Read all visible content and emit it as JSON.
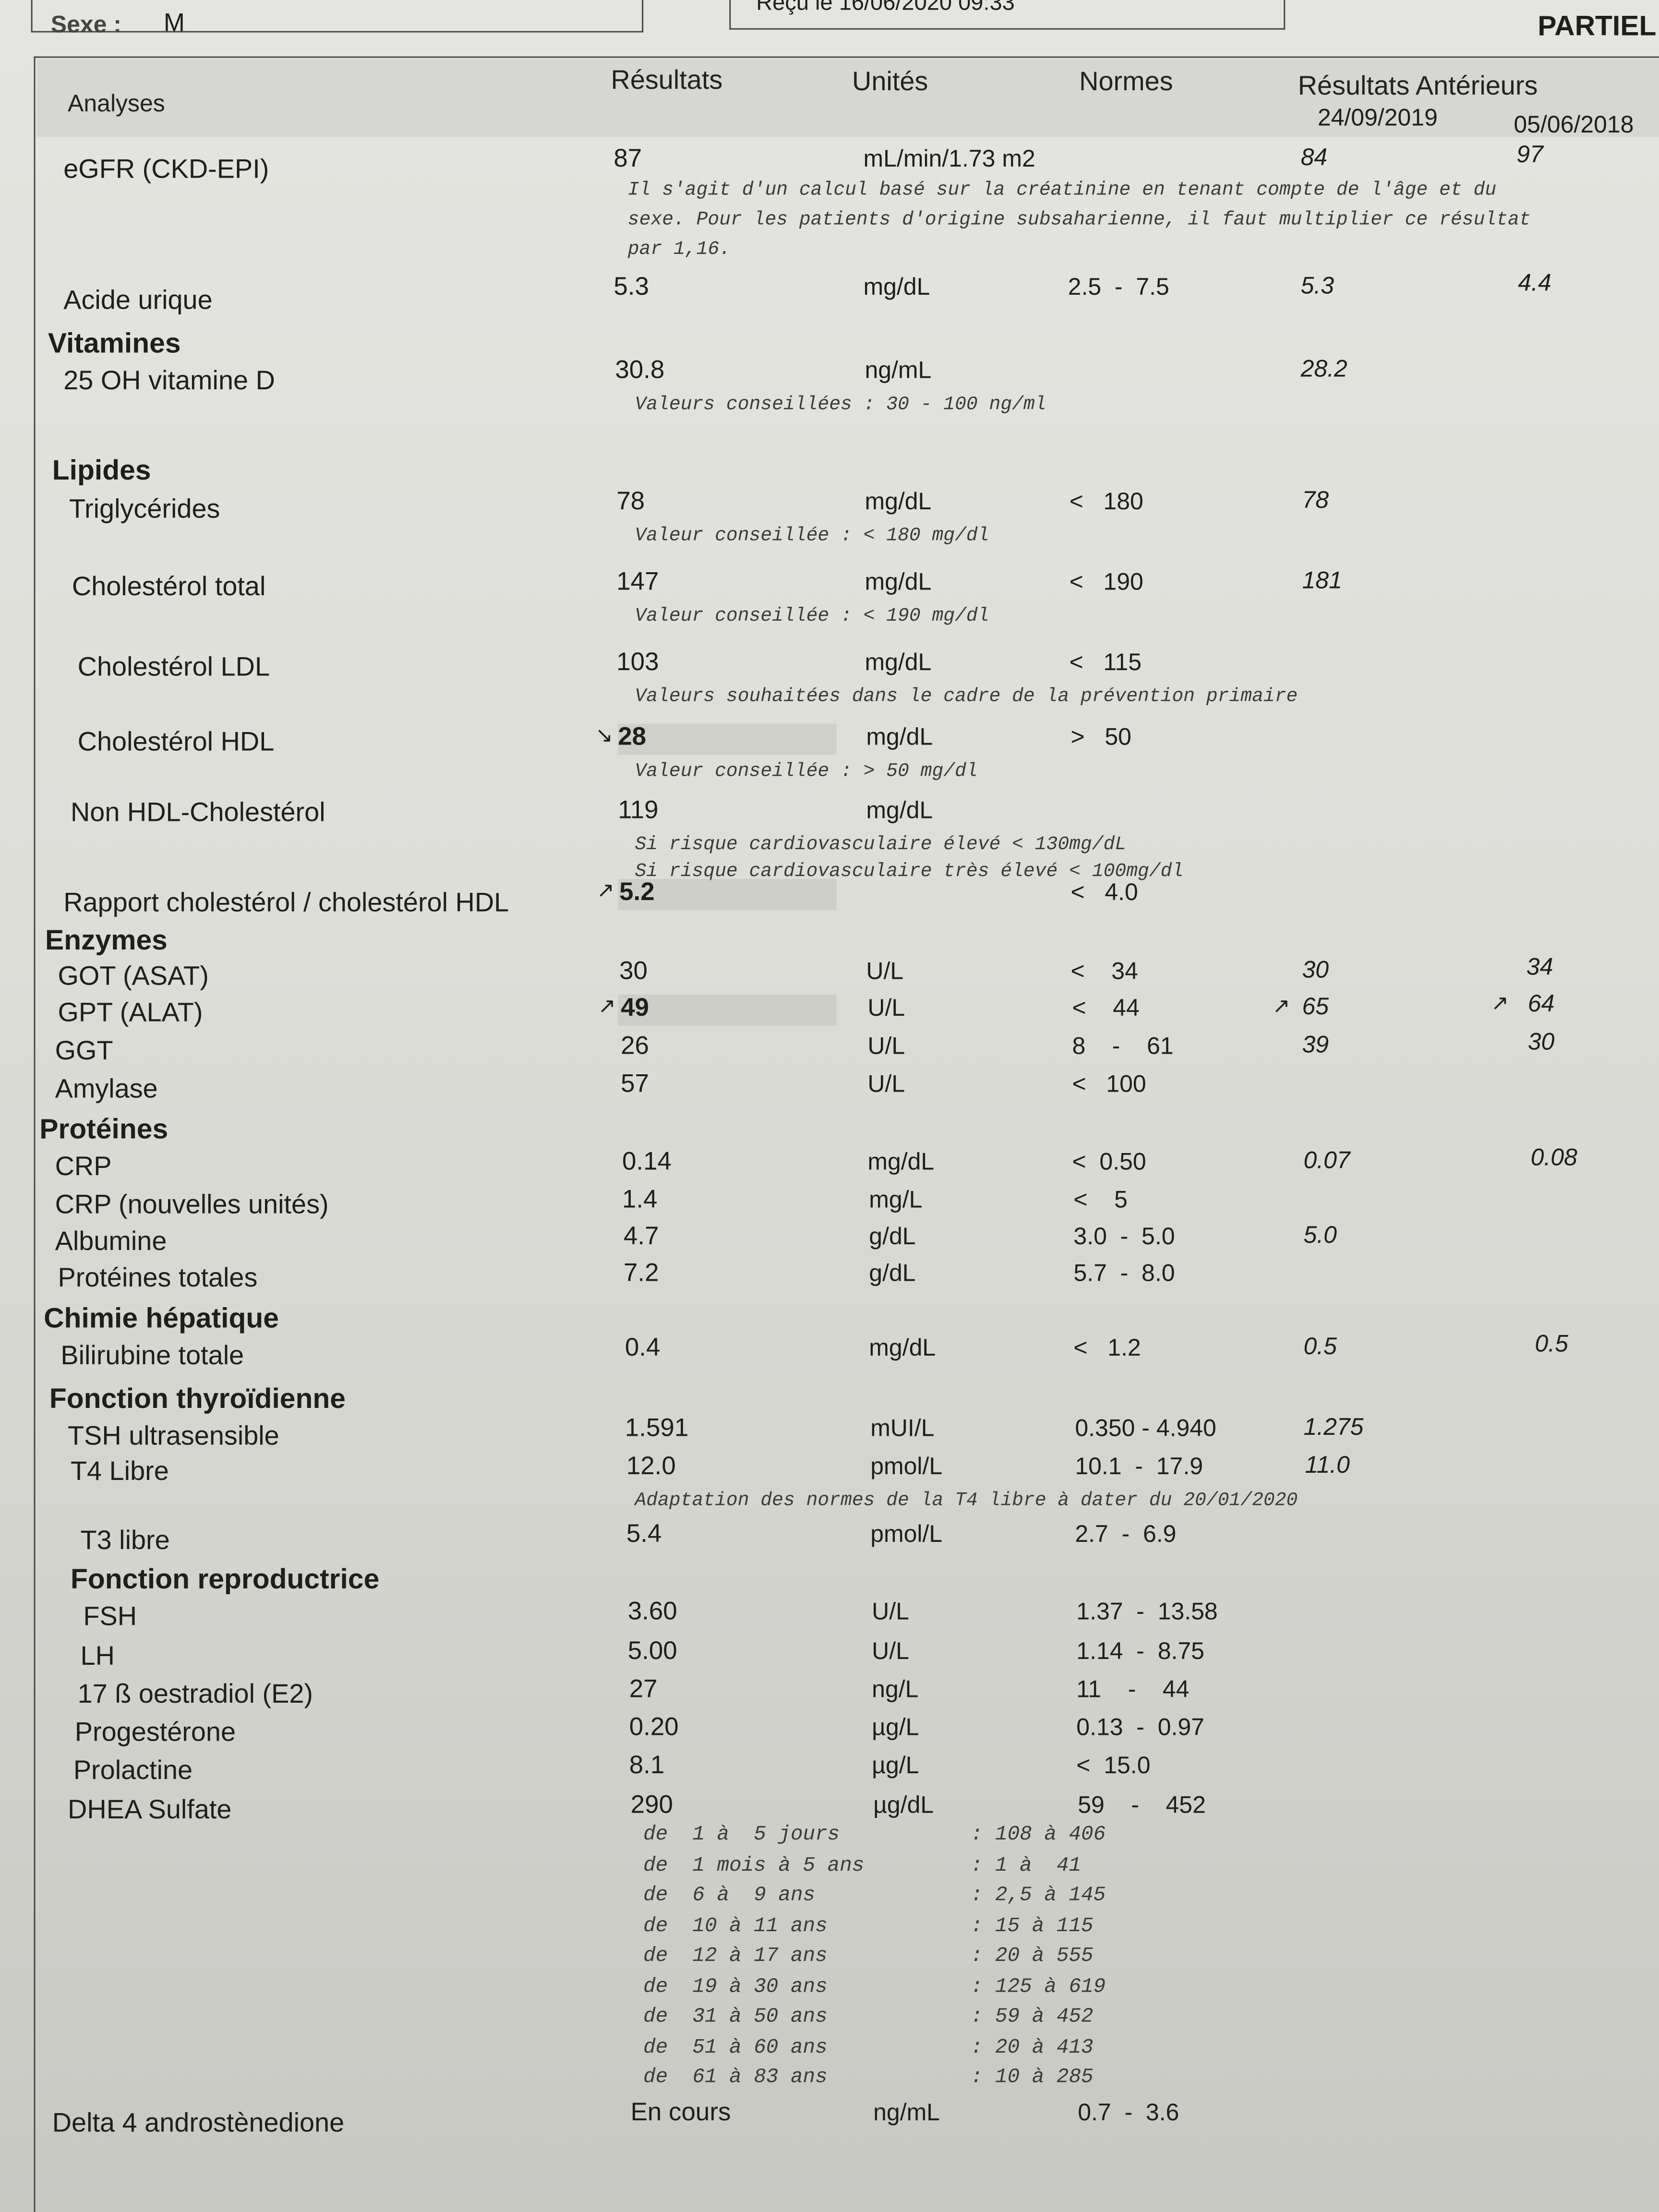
{
  "header": {
    "sex_label": "Sexe :",
    "sex_value": "M",
    "received": "Reçu le 16/06/2020 09:33",
    "status": "PARTIEL"
  },
  "columns": {
    "analyses": "Analyses",
    "results": "Résultats",
    "units": "Unités",
    "norms": "Normes",
    "previous": "Résultats Antérieurs",
    "prev_date_1": "24/09/2019",
    "prev_date_2": "05/06/2018"
  },
  "rows": [
    {
      "name": "eGFR (CKD-EPI)",
      "result": "87",
      "unit": "mL/min/1.73 m2",
      "norm": "",
      "prev1": "84",
      "prev2": "97",
      "notes": [
        "Il s'agit d'un calcul basé sur la créatinine en tenant compte de l'âge et du",
        "sexe. Pour les patients d'origine subsaharienne, il faut multiplier ce résultat",
        "par 1,16."
      ]
    },
    {
      "name": "Acide urique",
      "result": "5.3",
      "unit": "mg/dL",
      "norm": "2.5  -  7.5",
      "prev1": "5.3",
      "prev2": "4.4"
    },
    {
      "section": "Vitamines"
    },
    {
      "name": "25 OH vitamine D",
      "result": "30.8",
      "unit": "ng/mL",
      "norm": "",
      "prev1": "28.2",
      "prev2": "",
      "notes": [
        "Valeurs conseillées : 30 - 100 ng/ml"
      ]
    },
    {
      "section": "Lipides"
    },
    {
      "name": "Triglycérides",
      "result": "78",
      "unit": "mg/dL",
      "norm": "<   180",
      "prev1": "78",
      "prev2": "",
      "notes": [
        "Valeur conseillée : < 180 mg/dl"
      ]
    },
    {
      "name": "Cholestérol total",
      "result": "147",
      "unit": "mg/dL",
      "norm": "<   190",
      "prev1": "181",
      "prev2": "",
      "notes": [
        "Valeur conseillée : < 190 mg/dl"
      ]
    },
    {
      "name": "Cholestérol LDL",
      "result": "103",
      "unit": "mg/dL",
      "norm": "<   115",
      "prev1": "",
      "prev2": "",
      "notes": [
        "Valeurs souhaitées dans le cadre de la prévention primaire"
      ]
    },
    {
      "name": "Cholestérol HDL",
      "result": "28",
      "flag": "↘",
      "abnormal": true,
      "unit": "mg/dL",
      "norm": ">   50",
      "prev1": "",
      "prev2": "",
      "notes": [
        "Valeur conseillée : > 50 mg/dl"
      ]
    },
    {
      "name": "Non HDL-Cholestérol",
      "result": "119",
      "unit": "mg/dL",
      "norm": "",
      "prev1": "",
      "prev2": "",
      "notes": [
        "Si risque cardiovasculaire élevé < 130mg/dL",
        "Si risque cardiovasculaire très élevé < 100mg/dl"
      ]
    },
    {
      "name": "Rapport cholestérol / cholestérol HDL",
      "result": "5.2",
      "flag": "↗",
      "abnormal": true,
      "unit": "",
      "norm": "<   4.0",
      "prev1": "",
      "prev2": ""
    },
    {
      "section": "Enzymes"
    },
    {
      "name": "GOT (ASAT)",
      "result": "30",
      "unit": "U/L",
      "norm": "<    34",
      "prev1": "30",
      "prev2": "34"
    },
    {
      "name": "GPT (ALAT)",
      "result": "49",
      "flag": "↗",
      "abnormal": true,
      "unit": "U/L",
      "norm": "<    44",
      "prev1": "65",
      "prev1_flag": "↗",
      "prev2": "64",
      "prev2_flag": "↗"
    },
    {
      "name": "GGT",
      "result": "26",
      "unit": "U/L",
      "norm": "8    -    61",
      "prev1": "39",
      "prev2": "30"
    },
    {
      "name": "Amylase",
      "result": "57",
      "unit": "U/L",
      "norm": "<   100",
      "prev1": "",
      "prev2": ""
    },
    {
      "section": "Protéines"
    },
    {
      "name": "CRP",
      "result": "0.14",
      "unit": "mg/dL",
      "norm": "<  0.50",
      "prev1": "0.07",
      "prev2": "0.08"
    },
    {
      "name": "CRP (nouvelles unités)",
      "result": "1.4",
      "unit": "mg/L",
      "norm": "<    5",
      "prev1": "",
      "prev2": ""
    },
    {
      "name": "Albumine",
      "result": "4.7",
      "unit": "g/dL",
      "norm": "3.0  -  5.0",
      "prev1": "5.0",
      "prev2": ""
    },
    {
      "name": "Protéines totales",
      "result": "7.2",
      "unit": "g/dL",
      "norm": "5.7  -  8.0",
      "prev1": "",
      "prev2": ""
    },
    {
      "section": "Chimie hépatique"
    },
    {
      "name": "Bilirubine totale",
      "result": "0.4",
      "unit": "mg/dL",
      "norm": "<   1.2",
      "prev1": "0.5",
      "prev2": "0.5"
    },
    {
      "section": "Fonction thyroïdienne"
    },
    {
      "name": "TSH ultrasensible",
      "result": "1.591",
      "unit": "mUI/L",
      "norm": "0.350 - 4.940",
      "prev1": "1.275",
      "prev2": ""
    },
    {
      "name": "T4 Libre",
      "result": "12.0",
      "unit": "pmol/L",
      "norm": "10.1  -  17.9",
      "prev1": "11.0",
      "prev2": "",
      "notes": [
        "Adaptation des normes de la T4 libre à dater du 20/01/2020"
      ]
    },
    {
      "name": "T3 libre",
      "result": "5.4",
      "unit": "pmol/L",
      "norm": "2.7  -  6.9",
      "prev1": "",
      "prev2": ""
    },
    {
      "section": "Fonction reproductrice"
    },
    {
      "name": "FSH",
      "result": "3.60",
      "unit": "U/L",
      "norm": "1.37  -  13.58",
      "prev1": "",
      "prev2": ""
    },
    {
      "name": "LH",
      "result": "5.00",
      "unit": "U/L",
      "norm": "1.14  -  8.75",
      "prev1": "",
      "prev2": ""
    },
    {
      "name": "17 ß oestradiol (E2)",
      "result": "27",
      "unit": "ng/L",
      "norm": "11    -    44",
      "prev1": "",
      "prev2": ""
    },
    {
      "name": "Progestérone",
      "result": "0.20",
      "unit": "µg/L",
      "norm": "0.13  -  0.97",
      "prev1": "",
      "prev2": ""
    },
    {
      "name": "Prolactine",
      "result": "8.1",
      "unit": "µg/L",
      "norm": "<  15.0",
      "prev1": "",
      "prev2": ""
    },
    {
      "name": "DHEA Sulfate",
      "result": "290",
      "unit": "µg/dL",
      "norm": "59    -    452",
      "prev1": "",
      "prev2": "",
      "age_ranges": [
        {
          "age": "de  1 à  5 jours",
          "range": ": 108 à 406"
        },
        {
          "age": "de  1 mois à 5 ans",
          "range": ": 1 à  41"
        },
        {
          "age": "de  6 à  9 ans",
          "range": ": 2,5 à 145"
        },
        {
          "age": "de  10 à 11 ans",
          "range": ": 15 à 115"
        },
        {
          "age": "de  12 à 17 ans",
          "range": ": 20 à 555"
        },
        {
          "age": "de  19 à 30 ans",
          "range": ": 125 à 619"
        },
        {
          "age": "de  31 à 50 ans",
          "range": ": 59 à 452"
        },
        {
          "age": "de  51 à 60 ans",
          "range": ": 20 à 413"
        },
        {
          "age": "de  61 à 83 ans",
          "range": ": 10 à 285"
        }
      ]
    },
    {
      "name": "Delta 4 androstènedione",
      "result": "En cours",
      "unit": "ng/mL",
      "norm": "0.7  -  3.6",
      "prev1": "",
      "prev2": ""
    }
  ]
}
